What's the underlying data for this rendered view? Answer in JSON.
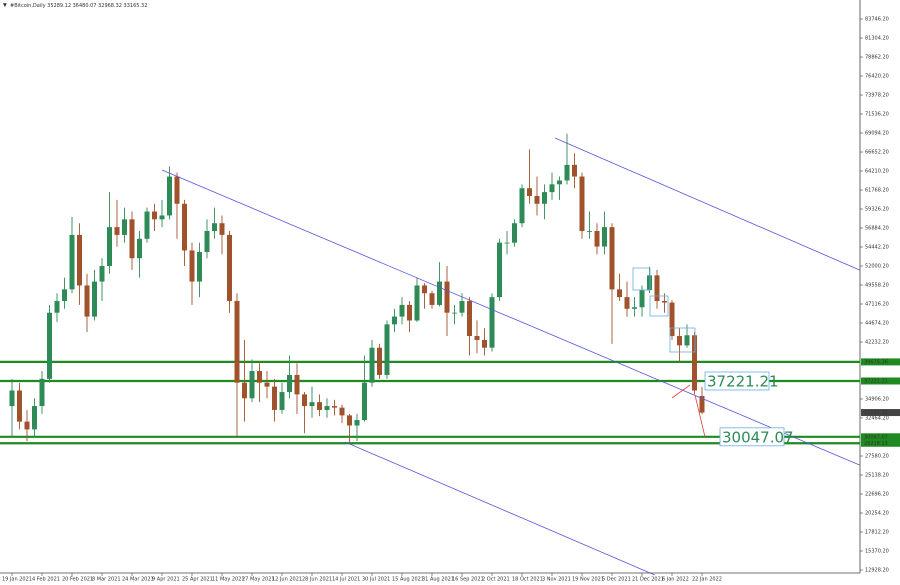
{
  "chart_data": {
    "type": "candlestick",
    "title": "#Bitcoin,Daily",
    "categories": [
      "19 Jan 2021",
      null,
      null,
      null,
      "4 Feb 2021",
      null,
      null,
      null,
      "20 Feb 2021",
      null,
      null,
      null,
      "8 Mar 2021",
      null,
      null,
      null,
      "24 Mar 2021",
      null,
      null,
      null,
      "9 Apr 2021",
      null,
      null,
      null,
      "25 Apr 2021",
      null,
      null,
      null,
      "11 May 2021",
      null,
      null,
      null,
      "27 May 2021",
      null,
      null,
      null,
      "12 Jun 2021",
      null,
      null,
      null,
      "28 Jun 2021",
      null,
      null,
      null,
      "14 Jul 2021",
      null,
      null,
      null,
      "30 Jul 2021",
      null,
      null,
      null,
      "15 Aug 2021",
      null,
      null,
      null,
      "31 Aug 2021",
      null,
      null,
      null,
      "16 Sep 2021",
      null,
      null,
      null,
      "2 Oct 2021",
      null,
      null,
      null,
      "18 Oct 2021",
      null,
      null,
      null,
      "3 Nov 2021",
      null,
      null,
      null,
      "19 Nov 2021",
      null,
      null,
      null,
      "5 Dec 2021",
      null,
      null,
      null,
      "21 Dec 2021",
      null,
      null,
      null,
      "6 Jan 2022",
      null,
      null,
      null,
      "22 Jan 2022"
    ],
    "candles": [
      [
        34000,
        37500,
        29900,
        36000
      ],
      [
        36000,
        37000,
        31000,
        32000
      ],
      [
        32000,
        33500,
        29500,
        31000
      ],
      [
        31000,
        35000,
        30000,
        34000
      ],
      [
        34000,
        38500,
        33000,
        37500
      ],
      [
        37500,
        47000,
        37000,
        46000
      ],
      [
        46000,
        48500,
        44800,
        47500
      ],
      [
        47500,
        50500,
        46500,
        49000
      ],
      [
        49000,
        58300,
        48500,
        56000
      ],
      [
        56000,
        57500,
        47000,
        49500
      ],
      [
        49500,
        51000,
        43500,
        45500
      ],
      [
        45500,
        51500,
        45000,
        50000
      ],
      [
        50000,
        53000,
        47500,
        52000
      ],
      [
        52000,
        61500,
        51000,
        57000
      ],
      [
        57000,
        60500,
        54500,
        56000
      ],
      [
        56000,
        59500,
        55000,
        58000
      ],
      [
        58000,
        59000,
        51500,
        53000
      ],
      [
        53000,
        56500,
        50500,
        55500
      ],
      [
        55500,
        59500,
        55000,
        59000
      ],
      [
        59000,
        60000,
        56500,
        58000
      ],
      [
        58000,
        60500,
        57000,
        58500
      ],
      [
        58500,
        64800,
        58000,
        63500
      ],
      [
        63500,
        64000,
        55500,
        60000
      ],
      [
        60000,
        60500,
        52000,
        54000
      ],
      [
        54000,
        55000,
        47000,
        50000
      ],
      [
        50000,
        55000,
        48000,
        53800
      ],
      [
        53800,
        58000,
        53000,
        56500
      ],
      [
        56500,
        59500,
        55500,
        57500
      ],
      [
        57500,
        58500,
        53500,
        56000
      ],
      [
        56000,
        56500,
        46000,
        47500
      ],
      [
        47500,
        48500,
        30000,
        37000
      ],
      [
        37000,
        42500,
        32000,
        35000
      ],
      [
        35000,
        40000,
        34500,
        38500
      ],
      [
        38500,
        39500,
        34500,
        37000
      ],
      [
        37000,
        38500,
        35000,
        36500
      ],
      [
        36500,
        37500,
        32000,
        33500
      ],
      [
        33500,
        37000,
        33000,
        35800
      ],
      [
        35800,
        40500,
        35000,
        38000
      ],
      [
        38000,
        39500,
        33000,
        35500
      ],
      [
        35500,
        35800,
        30500,
        34000
      ],
      [
        34000,
        36500,
        32500,
        34500
      ],
      [
        34500,
        35500,
        32700,
        33500
      ],
      [
        33500,
        35000,
        32500,
        34000
      ],
      [
        34000,
        34800,
        32800,
        33800
      ],
      [
        33800,
        34200,
        31800,
        32800
      ],
      [
        32800,
        33000,
        29300,
        31500
      ],
      [
        31500,
        33000,
        29500,
        32200
      ],
      [
        32200,
        40500,
        32000,
        37000
      ],
      [
        37000,
        42500,
        36500,
        41500
      ],
      [
        41500,
        42000,
        37500,
        38000
      ],
      [
        38000,
        45000,
        37500,
        44500
      ],
      [
        44500,
        46500,
        43500,
        45500
      ],
      [
        45500,
        48000,
        44500,
        47000
      ],
      [
        47000,
        47500,
        43500,
        45000
      ],
      [
        45000,
        50500,
        44800,
        49500
      ],
      [
        49500,
        49800,
        46500,
        48500
      ],
      [
        48500,
        48800,
        46500,
        47000
      ],
      [
        47000,
        52500,
        46800,
        50000
      ],
      [
        50000,
        52000,
        43000,
        46000
      ],
      [
        46000,
        47000,
        44500,
        46000
      ],
      [
        46000,
        48500,
        45500,
        47500
      ],
      [
        47500,
        48000,
        40500,
        43000
      ],
      [
        43000,
        45000,
        40800,
        42500
      ],
      [
        42500,
        44000,
        40500,
        41500
      ],
      [
        41500,
        48500,
        41000,
        48000
      ],
      [
        48000,
        55500,
        47500,
        55000
      ],
      [
        55000,
        56500,
        53500,
        55000
      ],
      [
        55000,
        58000,
        54500,
        57500
      ],
      [
        57500,
        62500,
        57000,
        62000
      ],
      [
        62000,
        67000,
        60000,
        61000
      ],
      [
        61000,
        63500,
        58500,
        60000
      ],
      [
        60000,
        62500,
        58000,
        61500
      ],
      [
        61500,
        64000,
        60500,
        62500
      ],
      [
        62500,
        63500,
        60500,
        63000
      ],
      [
        63000,
        69000,
        62500,
        65000
      ],
      [
        65000,
        66500,
        62000,
        63500
      ],
      [
        63500,
        64000,
        55500,
        56500
      ],
      [
        56500,
        59000,
        55500,
        56500
      ],
      [
        56500,
        57500,
        53500,
        54500
      ],
      [
        54500,
        59000,
        53500,
        57000
      ],
      [
        57000,
        57500,
        42000,
        49000
      ],
      [
        49000,
        51000,
        47500,
        48000
      ],
      [
        48000,
        50000,
        45500,
        46500
      ],
      [
        46500,
        48000,
        45500,
        46700
      ],
      [
        46700,
        49500,
        45500,
        48900
      ],
      [
        48900,
        51900,
        48500,
        50800
      ],
      [
        50800,
        51500,
        46500,
        47500
      ],
      [
        47500,
        48500,
        46000,
        47300
      ],
      [
        47300,
        47600,
        42500,
        43000
      ],
      [
        43000,
        44000,
        39600,
        41800
      ],
      [
        41800,
        44500,
        41500,
        43100
      ],
      [
        43100,
        43500,
        35500,
        36000
      ],
      [
        35289.12,
        36480.07,
        32968.32,
        33165.32
      ]
    ],
    "up_color": "#2e8b57",
    "down_color": "#a0522d",
    "ylim": [
      12542,
      86192
    ],
    "yticks": [
      {
        "value": 12928.2,
        "label": "12928.20"
      },
      {
        "value": 15370.2,
        "label": "15370.20"
      },
      {
        "value": 17812.2,
        "label": "17812.20"
      },
      {
        "value": 20254.2,
        "label": "20254.20"
      },
      {
        "value": 22696.2,
        "label": "22696.20"
      },
      {
        "value": 25138.2,
        "label": "25138.20"
      },
      {
        "value": 27580.2,
        "label": "27580.20"
      },
      {
        "value": 32464.2,
        "label": "32464.20"
      },
      {
        "value": 34906.2,
        "label": "34906.20"
      },
      {
        "value": 42232.2,
        "label": "42232.20"
      },
      {
        "value": 44674.2,
        "label": "44674.20"
      },
      {
        "value": 47116.2,
        "label": "47116.20"
      },
      {
        "value": 49558.2,
        "label": "49558.20"
      },
      {
        "value": 52000.2,
        "label": "52000.20"
      },
      {
        "value": 54442.2,
        "label": "54442.20"
      },
      {
        "value": 56884.2,
        "label": "56884.20"
      },
      {
        "value": 59326.2,
        "label": "59326.20"
      },
      {
        "value": 61768.2,
        "label": "61768.20"
      },
      {
        "value": 64210.2,
        "label": "64210.20"
      },
      {
        "value": 66652.2,
        "label": "66652.20"
      },
      {
        "value": 69094.2,
        "label": "69094.20"
      },
      {
        "value": 71536.2,
        "label": "71536.20"
      },
      {
        "value": 73978.2,
        "label": "73978.20"
      },
      {
        "value": 76420.2,
        "label": "76420.20"
      },
      {
        "value": 78862.2,
        "label": "78862.20"
      },
      {
        "value": 81304.2,
        "label": "81304.20"
      },
      {
        "value": 83746.2,
        "label": "83746.20"
      }
    ],
    "levels": [
      {
        "value": 39675.36,
        "boxed": false
      },
      {
        "value": 37221.21,
        "boxed": true
      },
      {
        "value": 30047.07,
        "boxed": true
      },
      {
        "value": 29218.13,
        "boxed": false
      }
    ],
    "level_color": "#1f8a1f",
    "trendlines": [
      {
        "points": [
          [
            20,
            64340
          ],
          [
            113,
            26425
          ]
        ]
      },
      {
        "points": [
          [
            72.4,
            68450
          ],
          [
            113,
            51490
          ]
        ]
      },
      {
        "points": [
          [
            44.4,
            29380
          ],
          [
            85.7,
            12285
          ]
        ]
      }
    ],
    "trendline_color": "#5555dd"
  }
}
